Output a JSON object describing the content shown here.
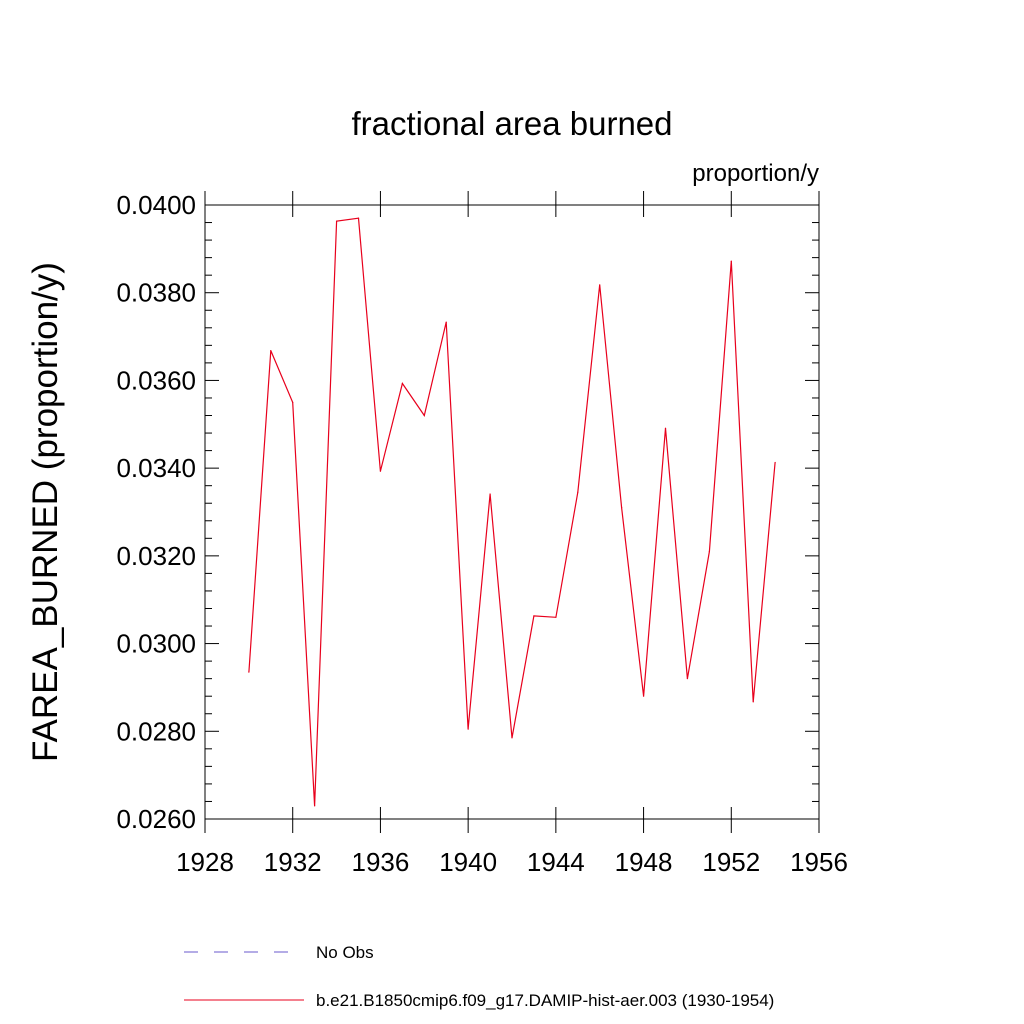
{
  "chart_data": {
    "type": "line",
    "title": "fractional area burned",
    "units_label": "proportion/y",
    "ylabel": "FAREA_BURNED  (proportion/y)",
    "xlabel": "",
    "xlim": [
      1928,
      1956
    ],
    "ylim": [
      0.026,
      0.04
    ],
    "x_ticks": [
      1928,
      1932,
      1936,
      1940,
      1944,
      1948,
      1952,
      1956
    ],
    "x_tick_labels": [
      "1928",
      "1932",
      "1936",
      "1940",
      "1944",
      "1948",
      "1952",
      "1956"
    ],
    "y_ticks": [
      0.026,
      0.028,
      0.03,
      0.032,
      0.034,
      0.036,
      0.038,
      0.04
    ],
    "y_tick_labels": [
      "0.0260",
      "0.0280",
      "0.0300",
      "0.0320",
      "0.0340",
      "0.0360",
      "0.0380",
      "0.0400"
    ],
    "grid": false,
    "legend_position": "bottom",
    "series": [
      {
        "name": "b.e21.B1850cmip6.f09_g17.DAMIP-hist-aer.003 (1930-1954)",
        "color": "#e8001c",
        "style": "solid",
        "x": [
          1930,
          1931,
          1932,
          1933,
          1934,
          1935,
          1936,
          1937,
          1938,
          1939,
          1940,
          1941,
          1942,
          1943,
          1944,
          1945,
          1946,
          1947,
          1948,
          1949,
          1950,
          1951,
          1952,
          1953,
          1954
        ],
        "values": [
          0.02935,
          0.03668,
          0.0355,
          0.0263,
          0.03963,
          0.0397,
          0.03393,
          0.03593,
          0.0352,
          0.03733,
          0.02805,
          0.03341,
          0.02785,
          0.03063,
          0.0306,
          0.03345,
          0.03818,
          0.0331,
          0.0288,
          0.03491,
          0.0292,
          0.0321,
          0.03872,
          0.02867,
          0.03413
        ]
      }
    ],
    "legend": [
      {
        "label": "No Obs",
        "color": "#6a5acd",
        "style": "dashed"
      },
      {
        "label": "b.e21.B1850cmip6.f09_g17.DAMIP-hist-aer.003 (1930-1954)",
        "color": "#e8001c",
        "style": "solid"
      }
    ]
  }
}
